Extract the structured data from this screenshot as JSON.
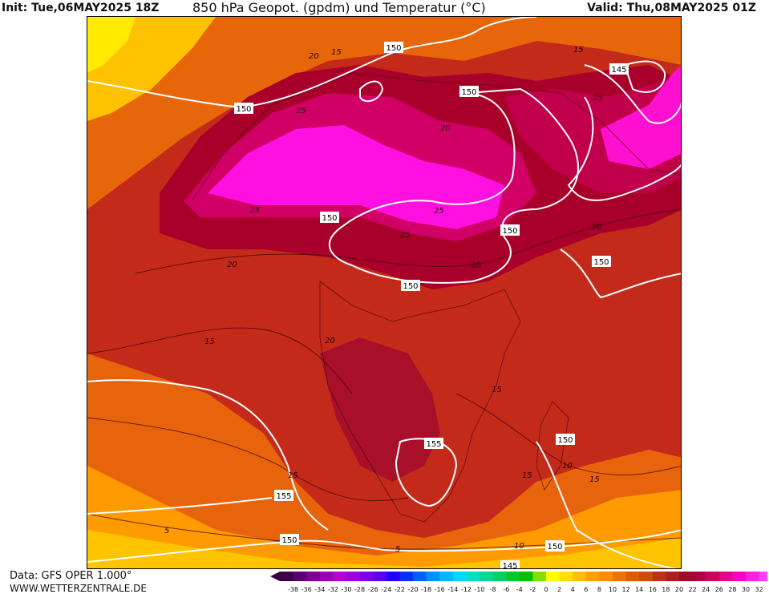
{
  "header": {
    "init": "Init: Tue,06MAY2025 18Z",
    "title": "850 hPa Geopot. (gpdm) und Temperatur (°C)",
    "valid": "Valid: Thu,08MAY2025 01Z"
  },
  "footer": {
    "data_source": "Data: GFS OPER 1.000°",
    "website": "WWW.WETTERZENTRALE.DE"
  },
  "legend": {
    "tick_labels": [
      "-38",
      "-36",
      "-34",
      "-32",
      "-30",
      "-28",
      "-26",
      "-24",
      "-22",
      "-20",
      "-18",
      "-16",
      "-14",
      "-12",
      "-10",
      "-8",
      "-6",
      "-4",
      "-2",
      "0",
      "2",
      "4",
      "6",
      "8",
      "10",
      "12",
      "14",
      "16",
      "18",
      "20",
      "22",
      "24",
      "26",
      "28",
      "30",
      "32"
    ],
    "colors": [
      "#3d0046",
      "#5c006c",
      "#7d0090",
      "#9a00b0",
      "#b800d0",
      "#a000e0",
      "#7d00e8",
      "#5a00ee",
      "#2200ff",
      "#0030ff",
      "#0060ff",
      "#0090ff",
      "#00b8ff",
      "#00d8ff",
      "#00e0c0",
      "#00d890",
      "#00d060",
      "#00c830",
      "#00c000",
      "#80e000",
      "#ffff00",
      "#ffe000",
      "#ffc000",
      "#ffa000",
      "#ff8c00",
      "#f07000",
      "#e05a00",
      "#d04a10",
      "#c03018",
      "#b01c20",
      "#a00c28",
      "#b00040",
      "#d00060",
      "#e8008a",
      "#ff00c0",
      "#ff20e0",
      "#ff40ff"
    ]
  },
  "map_labels": {
    "geopotential": [
      "150",
      "150",
      "150",
      "145",
      "150",
      "150",
      "150",
      "150",
      "150",
      "155",
      "155",
      "155",
      "150",
      "150",
      "145"
    ],
    "temperature": [
      "20",
      "15",
      "25",
      "20",
      "25",
      "25",
      "25",
      "20",
      "20",
      "20",
      "15",
      "25",
      "15",
      "20",
      "15",
      "15",
      "10",
      "15",
      "5",
      "5",
      "10",
      "15"
    ]
  },
  "colors": {
    "hot_magenta": "#ff10e0",
    "deep_red": "#a8002a",
    "red": "#c02018",
    "orange_red": "#d8401a",
    "orange": "#ee7a0a",
    "yellow": "#ffd000",
    "isohypse": "#ffffff",
    "isotherm": "#3a0000"
  }
}
